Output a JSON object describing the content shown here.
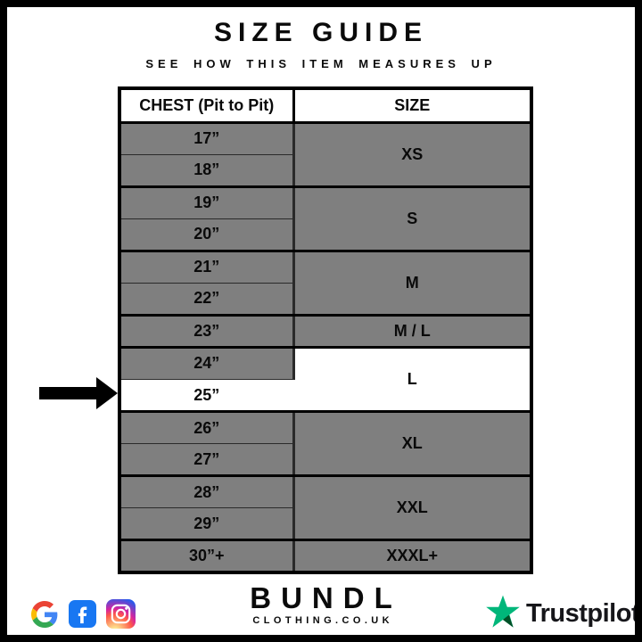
{
  "title": "SIZE GUIDE",
  "subtitle": "SEE HOW THIS ITEM MEASURES UP",
  "chart_data": {
    "type": "table",
    "title": "SIZE GUIDE",
    "subtitle": "SEE HOW THIS ITEM MEASURES UP",
    "columns": [
      "CHEST (Pit to Pit)",
      "SIZE"
    ],
    "rows": [
      [
        "17”",
        "XS"
      ],
      [
        "18”",
        "XS"
      ],
      [
        "19”",
        "S"
      ],
      [
        "20”",
        "S"
      ],
      [
        "21”",
        "M"
      ],
      [
        "22”",
        "M"
      ],
      [
        "23”",
        "M / L"
      ],
      [
        "24”",
        "L"
      ],
      [
        "25”",
        "L"
      ],
      [
        "26”",
        "XL"
      ],
      [
        "27”",
        "XL"
      ],
      [
        "28”",
        "XXL"
      ],
      [
        "29”",
        "XXL"
      ],
      [
        "30”+",
        "XXXL+"
      ]
    ],
    "highlighted_row": [
      "25”",
      "L"
    ],
    "annotation": "black arrow points to the 25” / L row"
  },
  "table": {
    "headers": [
      "CHEST (Pit to Pit)",
      "SIZE"
    ],
    "highlighted_chest": "25”",
    "groups": [
      {
        "chest": [
          "17”",
          "18”"
        ],
        "size": "XS",
        "highlight": false
      },
      {
        "chest": [
          "19”",
          "20”"
        ],
        "size": "S",
        "highlight": false
      },
      {
        "chest": [
          "21”",
          "22”"
        ],
        "size": "M",
        "highlight": false
      },
      {
        "chest": [
          "23”"
        ],
        "size": "M / L",
        "highlight": false
      },
      {
        "chest": [
          "24”",
          "25”"
        ],
        "size": "L",
        "highlight": true
      },
      {
        "chest": [
          "26”",
          "27”"
        ],
        "size": "XL",
        "highlight": false
      },
      {
        "chest": [
          "28”",
          "29”"
        ],
        "size": "XXL",
        "highlight": false
      },
      {
        "chest": [
          "30”+"
        ],
        "size": "XXXL+",
        "highlight": false
      }
    ]
  },
  "arrow": {
    "points_to": "25”"
  },
  "footer": {
    "brand": {
      "name": "BUNDL",
      "tagline": "CLOTHING.CO.UK"
    },
    "social_icons": [
      "google",
      "facebook",
      "instagram"
    ],
    "trustpilot_label": "Trustpilot"
  },
  "colors": {
    "cell_gray": "#7f7f7f",
    "highlight_white": "#ffffff",
    "border_black": "#000000",
    "trustpilot_green": "#00B67A",
    "trustpilot_dark_green": "#005128",
    "facebook_blue": "#1877F2",
    "google_blue": "#4285F4",
    "google_red": "#EA4335",
    "google_yellow": "#FBBC05",
    "google_green": "#34A853"
  }
}
